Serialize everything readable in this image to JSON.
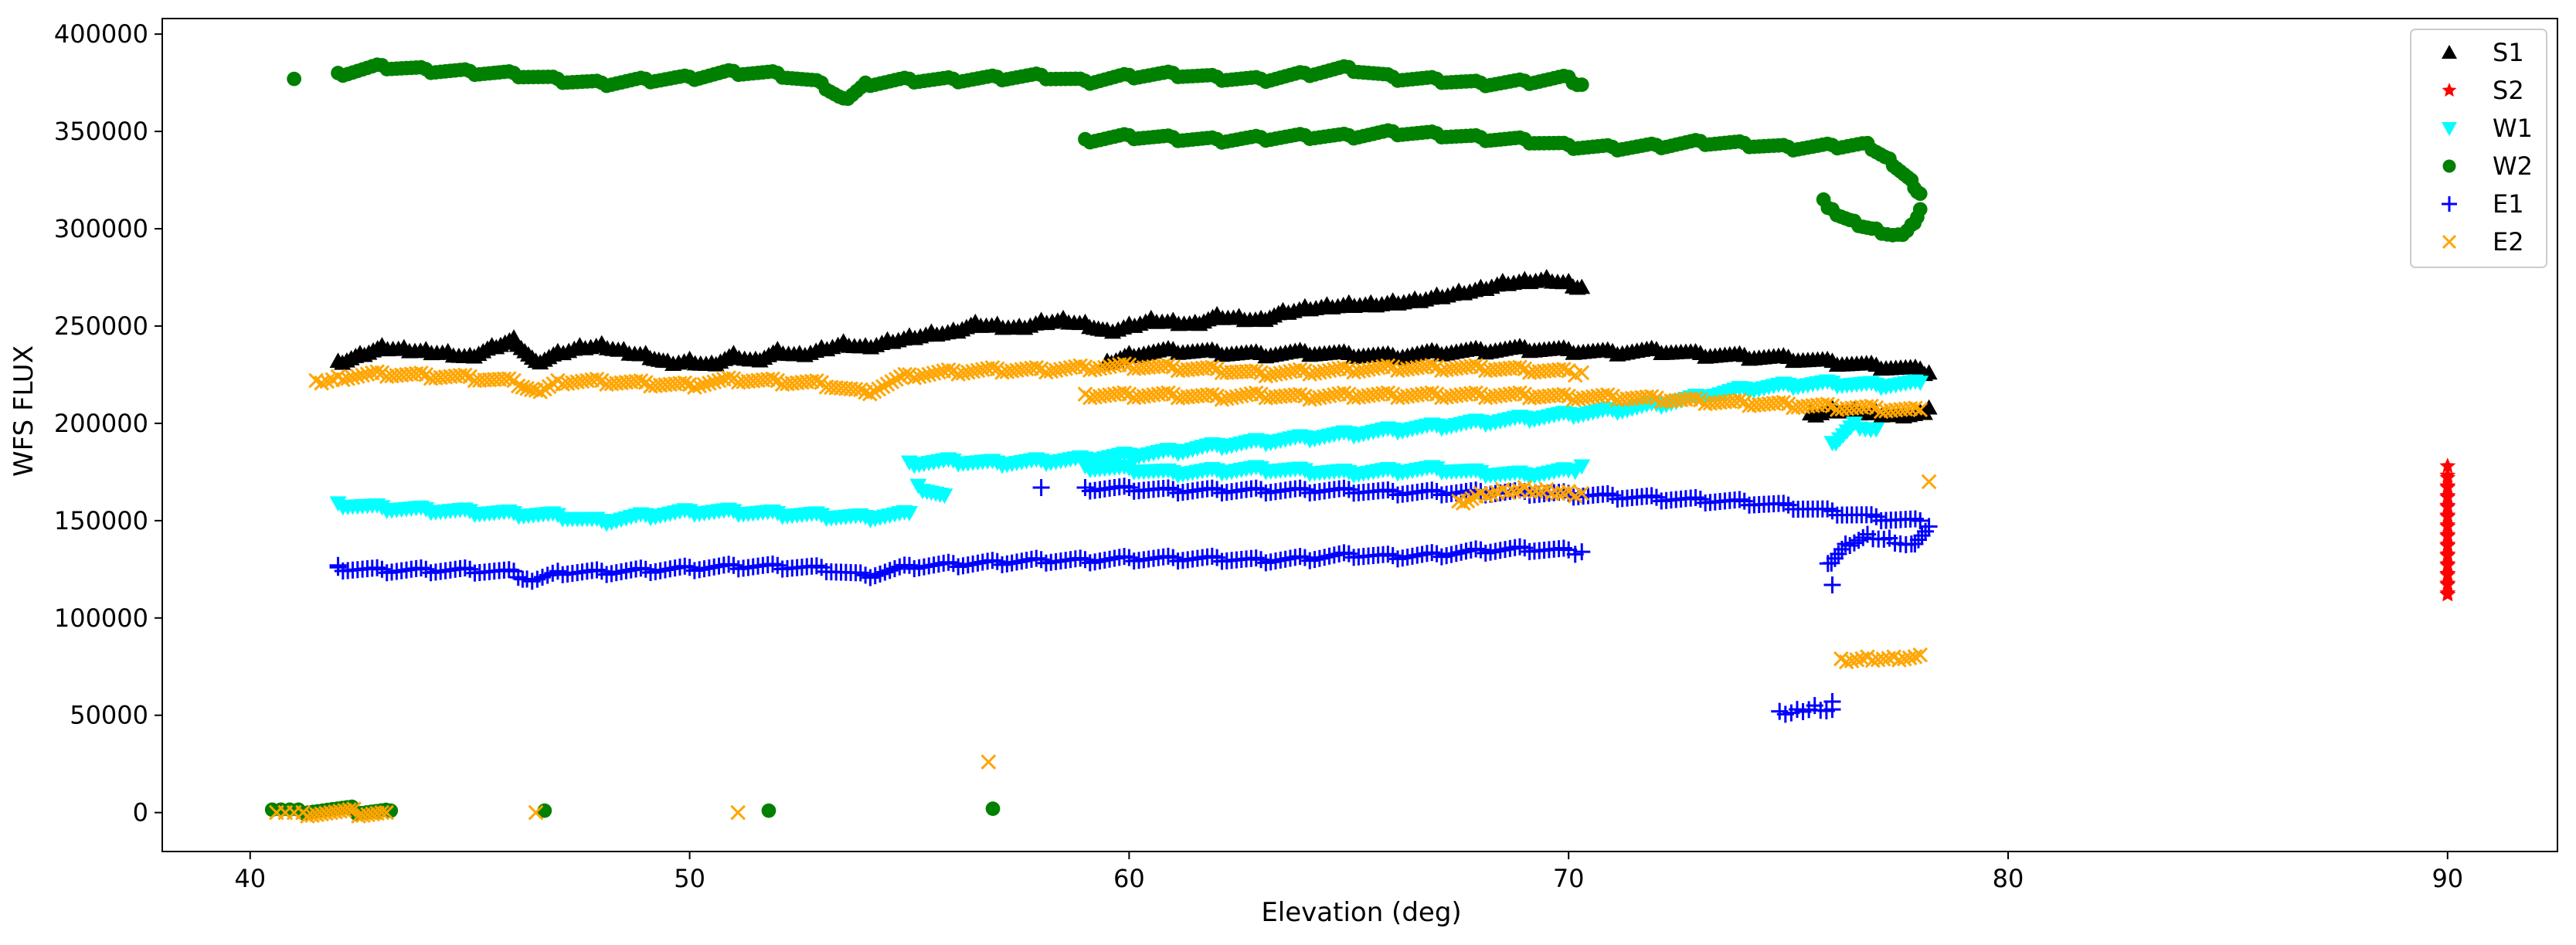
{
  "chart_data": {
    "type": "scatter",
    "title": "",
    "xlabel": "Elevation (deg)",
    "ylabel": "WFS FLUX",
    "xlim": [
      38,
      92.5
    ],
    "ylim": [
      -20000,
      408000
    ],
    "xticks": [
      40,
      50,
      60,
      70,
      80,
      90
    ],
    "yticks": [
      0,
      50000,
      100000,
      150000,
      200000,
      250000,
      300000,
      350000,
      400000
    ],
    "legend_position": "top-right",
    "series": [
      {
        "name": "S1",
        "marker": "triangle-up",
        "color": "#000000",
        "segments": [
          {
            "x": [
              42.0,
              42.5,
              43.0,
              43.5,
              44.0,
              44.5,
              45.0,
              45.5,
              46.0,
              46.5,
              47.0,
              47.5,
              48.0,
              48.5,
              49.0,
              49.5,
              50.0,
              50.5,
              51.0,
              51.5,
              52.0,
              52.5,
              53.0,
              53.5,
              54.0,
              54.5,
              55.0,
              55.5,
              56.0,
              56.5,
              57.0,
              57.5,
              58.0,
              58.5,
              59.0,
              59.5,
              60.0,
              60.5,
              61.0,
              61.5,
              62.0,
              62.5,
              63.0,
              63.5,
              64.0,
              64.5,
              65.0,
              65.5,
              66.0,
              66.5,
              67.0,
              67.5,
              68.0,
              68.5,
              69.0,
              69.5,
              70.0,
              70.3
            ],
            "y": [
              232000,
              236000,
              240000,
              239000,
              238000,
              237000,
              235000,
              240000,
              244000,
              232000,
              237000,
              240000,
              241000,
              238000,
              236000,
              232000,
              233000,
              231000,
              236000,
              233000,
              238000,
              236000,
              239000,
              242000,
              240000,
              243000,
              245000,
              247000,
              248000,
              252000,
              251000,
              250000,
              253000,
              254000,
              252000,
              248000,
              251000,
              254000,
              253000,
              252000,
              256000,
              255000,
              254000,
              258000,
              260000,
              261000,
              262000,
              262000,
              263000,
              264000,
              266000,
              268000,
              270000,
              273000,
              274000,
              275000,
              273000,
              270000
            ]
          },
          {
            "x": [
              59.5,
              60.0,
              61.0,
              62.0,
              63.0,
              64.0,
              65.0,
              66.0,
              67.0,
              68.0,
              69.0,
              70.0,
              71.0,
              72.0,
              73.0,
              74.0,
              75.0,
              76.0,
              77.0,
              78.0,
              78.2
            ],
            "y": [
              232000,
              236000,
              238000,
              237000,
              236000,
              237000,
              236000,
              235000,
              237000,
              238000,
              239000,
              238000,
              237000,
              238000,
              236000,
              235000,
              234000,
              232000,
              230000,
              228000,
              226000
            ]
          },
          {
            "x": [
              75.5,
              76.0,
              76.5,
              77.0,
              77.5,
              78.0,
              78.2
            ],
            "y": [
              205000,
              208000,
              207000,
              206000,
              205000,
              206000,
              208000
            ]
          }
        ]
      },
      {
        "name": "S2",
        "marker": "star",
        "color": "#ff0000",
        "segments": [
          {
            "x": [
              90,
              90,
              90,
              90,
              90,
              90,
              90,
              90,
              90,
              90,
              90,
              90,
              90,
              90
            ],
            "y": [
              112000,
              117000,
              122000,
              127000,
              132000,
              137000,
              142000,
              147000,
              152000,
              157000,
              162000,
              167000,
              172000,
              178000
            ]
          }
        ]
      },
      {
        "name": "W1",
        "marker": "triangle-down",
        "color": "#00ffff",
        "segments": [
          {
            "x": [
              42.0,
              43.0,
              44.0,
              45.0,
              46.0,
              47.0,
              48.0,
              49.0,
              50.0,
              51.0,
              52.0,
              53.0,
              54.0,
              55.0
            ],
            "y": [
              159000,
              157000,
              156000,
              155000,
              154000,
              153000,
              150000,
              153000,
              155000,
              155000,
              154000,
              153000,
              152000,
              154000
            ]
          },
          {
            "x": [
              55.0,
              56.0,
              57.0,
              58.0,
              59.0,
              60.0,
              61.0,
              62.0,
              63.0,
              64.0,
              65.0,
              66.0,
              67.0,
              68.0,
              69.0,
              70.0,
              71.0,
              72.0,
              73.0,
              74.0,
              75.0,
              76.0,
              77.0,
              78.0
            ],
            "y": [
              180000,
              181000,
              180000,
              181000,
              182000,
              184000,
              186000,
              189000,
              191000,
              193000,
              195000,
              197000,
              199000,
              201000,
              203000,
              205000,
              207000,
              210000,
              214000,
              218000,
              220000,
              221000,
              220000,
              221000
            ]
          },
          {
            "x": [
              59.0,
              60.0,
              61.0,
              62.0,
              63.0,
              64.0,
              65.0,
              66.0,
              67.0,
              68.0,
              69.0,
              70.0,
              70.3
            ],
            "y": [
              178000,
              177000,
              175000,
              176000,
              177000,
              176000,
              175000,
              176000,
              177000,
              175000,
              174000,
              176000,
              178000
            ]
          },
          {
            "x": [
              55.2,
              55.8,
              76.0,
              76.5,
              77.0
            ],
            "y": [
              168000,
              163000,
              190000,
              200000,
              197000
            ]
          }
        ]
      },
      {
        "name": "W2",
        "marker": "circle",
        "color": "#008000",
        "segments": [
          {
            "x": [
              42.0,
              43.0,
              44.0,
              45.0,
              46.0,
              47.0,
              48.0,
              49.0,
              50.0,
              51.0,
              52.0,
              53.0,
              53.5,
              54.0,
              55.0,
              56.0,
              57.0,
              58.0,
              59.0,
              60.0,
              61.0,
              62.0,
              63.0,
              64.0,
              65.0,
              66.0,
              67.0,
              68.0,
              69.0,
              70.0,
              70.3
            ],
            "y": [
              380000,
              384000,
              382000,
              381000,
              380000,
              377000,
              375000,
              377000,
              378000,
              381000,
              380000,
              375000,
              367000,
              375000,
              377000,
              377000,
              378000,
              379000,
              376000,
              379000,
              380000,
              378000,
              377000,
              380000,
              383000,
              378000,
              377000,
              375000,
              376000,
              378000,
              374000
            ]
          },
          {
            "x": [
              59.0,
              60.0,
              61.0,
              62.0,
              63.0,
              64.0,
              65.0,
              66.0,
              67.0,
              68.0,
              69.0,
              70.0,
              71.0,
              72.0,
              73.0,
              74.0,
              75.0,
              76.0,
              76.8,
              77.3,
              77.8,
              78.0
            ],
            "y": [
              346000,
              348000,
              347000,
              346000,
              347000,
              348000,
              348000,
              350000,
              349000,
              347000,
              346000,
              343000,
              342000,
              343000,
              345000,
              344000,
              342000,
              343000,
              344000,
              336000,
              325000,
              318000
            ]
          },
          {
            "x": [
              75.8,
              76.0,
              76.5,
              77.0,
              77.5,
              77.8,
              78.0
            ],
            "y": [
              315000,
              310000,
              304000,
              300000,
              297000,
              302000,
              310000
            ]
          },
          {
            "x": [
              41.0,
              40.5,
              40.7,
              40.9,
              41.1,
              43.2,
              46.7,
              51.8,
              56.9
            ],
            "y": [
              377000,
              1500,
              1500,
              1500,
              1500,
              1000,
              1000,
              1000,
              2000
            ]
          }
        ]
      },
      {
        "name": "E1",
        "marker": "plus",
        "color": "#0000ff",
        "segments": [
          {
            "x": [
              42.0,
              43.0,
              44.0,
              45.0,
              46.0,
              46.3,
              47.0,
              48.0,
              49.0,
              50.0,
              51.0,
              52.0,
              53.0,
              54.0,
              55.0,
              56.0,
              57.0,
              58.0,
              59.0,
              60.0,
              61.0,
              62.0,
              63.0,
              64.0,
              65.0,
              66.0,
              67.0,
              68.0,
              69.0,
              70.0,
              70.3
            ],
            "y": [
              126000,
              125000,
              125000,
              125000,
              124000,
              120000,
              124000,
              124000,
              125000,
              126000,
              127000,
              127000,
              126000,
              122000,
              127000,
              128000,
              129000,
              130000,
              130000,
              131000,
              131000,
              131000,
              130000,
              131000,
              133000,
              132000,
              133000,
              135000,
              136000,
              135000,
              134000
            ]
          },
          {
            "x": [
              59.0,
              60.0,
              61.0,
              62.0,
              63.0,
              64.0,
              65.0,
              66.0,
              67.0,
              68.0,
              69.0,
              70.0,
              71.0,
              72.0,
              73.0,
              74.0,
              75.0,
              76.0,
              77.0,
              78.0
            ],
            "y": [
              167000,
              167000,
              166000,
              166000,
              166000,
              166000,
              166000,
              165000,
              165000,
              165000,
              165000,
              164000,
              163000,
              162000,
              161000,
              160000,
              158000,
              155000,
              152000,
              150000
            ]
          },
          {
            "x": [
              75.9,
              76.3,
              76.8,
              77.3,
              77.8,
              78.2
            ],
            "y": [
              128000,
              138000,
              143000,
              141000,
              138000,
              147000
            ]
          },
          {
            "x": [
              74.8,
              75.2,
              75.6,
              76.0
            ],
            "y": [
              52000,
              53000,
              55000,
              53000
            ]
          },
          {
            "x": [
              42.0,
              58.0,
              76.0,
              76.0
            ],
            "y": [
              127000,
              167000,
              117000,
              57000
            ]
          }
        ]
      },
      {
        "name": "E2",
        "marker": "x",
        "color": "#ffa500",
        "segments": [
          {
            "x": [
              41.5,
              42.0,
              43.0,
              44.0,
              45.0,
              46.0,
              46.5,
              47.0,
              48.0,
              49.0,
              50.0,
              51.0,
              52.0,
              53.0,
              54.0,
              55.0,
              56.0,
              57.0,
              58.0,
              59.0,
              60.0,
              61.0,
              62.0,
              63.0,
              64.0,
              65.0,
              66.0,
              67.0,
              68.0,
              69.0,
              70.0,
              70.3
            ],
            "y": [
              222000,
              224000,
              226000,
              225000,
              224000,
              222000,
              217000,
              222000,
              222000,
              221000,
              220000,
              223000,
              222000,
              221000,
              216000,
              225000,
              227000,
              228000,
              228000,
              229000,
              230000,
              229000,
              228000,
              226000,
              227000,
              228000,
              229000,
              229000,
              229000,
              228000,
              227000,
              226000
            ]
          },
          {
            "x": [
              59.0,
              60.0,
              61.0,
              62.0,
              63.0,
              64.0,
              65.0,
              66.0,
              67.0,
              68.0,
              69.0,
              70.0,
              71.0,
              72.0,
              73.0,
              74.0,
              75.0,
              76.0,
              77.0,
              78.0
            ],
            "y": [
              215000,
              215000,
              215000,
              214000,
              215000,
              214000,
              215000,
              215000,
              215000,
              215000,
              215000,
              214000,
              214000,
              213000,
              212000,
              211000,
              210000,
              209000,
              208000,
              207000
            ]
          },
          {
            "x": [
              67.5,
              68.0,
              68.5,
              69.0,
              69.5,
              70.0,
              70.3
            ],
            "y": [
              160000,
              164000,
              166000,
              167000,
              166000,
              165000,
              164000
            ]
          },
          {
            "x": [
              76.2,
              76.8,
              77.4,
              78.0
            ],
            "y": [
              79000,
              80000,
              80000,
              81000
            ]
          },
          {
            "x": [
              78.2,
              56.8,
              40.6,
              40.8,
              41.0,
              41.2,
              43.1,
              46.5,
              51.1
            ],
            "y": [
              170000,
              26000,
              0,
              0,
              0,
              0,
              0,
              0,
              0
            ]
          }
        ]
      }
    ]
  }
}
